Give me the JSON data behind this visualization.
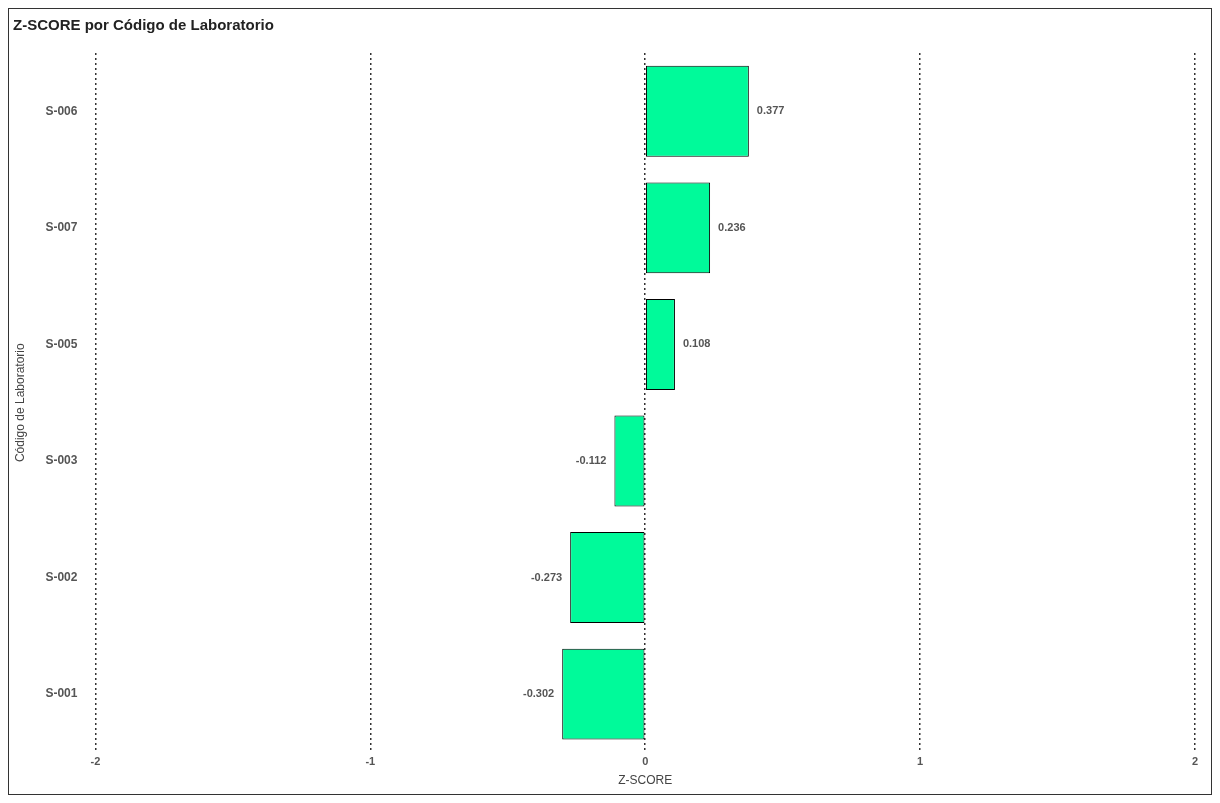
{
  "chart_data": {
    "type": "bar",
    "orientation": "horizontal",
    "title": "Z-SCORE por Código de Laboratorio",
    "xlabel": "Z-SCORE",
    "ylabel": "Código de Laboratorio",
    "categories": [
      "S-006",
      "S-007",
      "S-005",
      "S-003",
      "S-002",
      "S-001"
    ],
    "values": [
      0.377,
      0.236,
      0.108,
      -0.112,
      -0.273,
      -0.302
    ],
    "color": "#00fa9a",
    "xlim": [
      -2,
      2
    ],
    "xticks": [
      -2,
      -1,
      0,
      1,
      2
    ],
    "grid": "x",
    "data_labels": true,
    "legend": false
  }
}
